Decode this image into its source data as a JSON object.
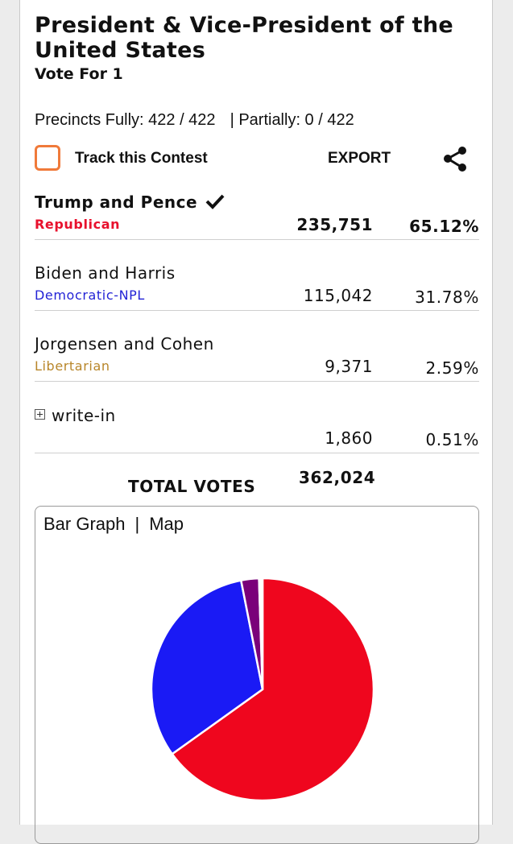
{
  "contest": {
    "title": "President & Vice-President of the United States",
    "vote_for": "Vote For 1",
    "precincts_fully": "Precincts Fully: 422 / 422",
    "precincts_partially": "| Partially: 0 / 422"
  },
  "actions": {
    "track_label": "Track this Contest",
    "export_label": "EXPORT",
    "share_icon": "share-icon",
    "track_checked": false
  },
  "candidates": [
    {
      "name": "Trump and Pence",
      "party": "Republican",
      "party_color": "#e8112d",
      "votes": "235,751",
      "percent": "65.12%",
      "winner": true
    },
    {
      "name": "Biden and Harris",
      "party": "Democratic-NPL",
      "party_color": "#2323d6",
      "votes": "115,042",
      "percent": "31.78%",
      "winner": false
    },
    {
      "name": "Jorgensen and Cohen",
      "party": "Libertarian",
      "party_color": "#b8862a",
      "votes": "9,371",
      "percent": "2.59%",
      "winner": false
    },
    {
      "name": "write-in",
      "party": "",
      "party_color": "",
      "votes": "1,860",
      "percent": "0.51%",
      "winner": false
    }
  ],
  "totals": {
    "label": "TOTAL VOTES",
    "value": "362,024"
  },
  "graph": {
    "tab_bar": "Bar Graph",
    "tab_separator": "|",
    "tab_map": "Map"
  },
  "chart_data": {
    "type": "pie",
    "slices": [
      {
        "label": "Trump and Pence",
        "value": 65.12,
        "color": "#ef061e"
      },
      {
        "label": "Biden and Harris",
        "value": 31.78,
        "color": "#1a1af5"
      },
      {
        "label": "Jorgensen and Cohen",
        "value": 2.59,
        "color": "#7a007a"
      },
      {
        "label": "write-in",
        "value": 0.51,
        "color": "#ffffff"
      }
    ]
  }
}
